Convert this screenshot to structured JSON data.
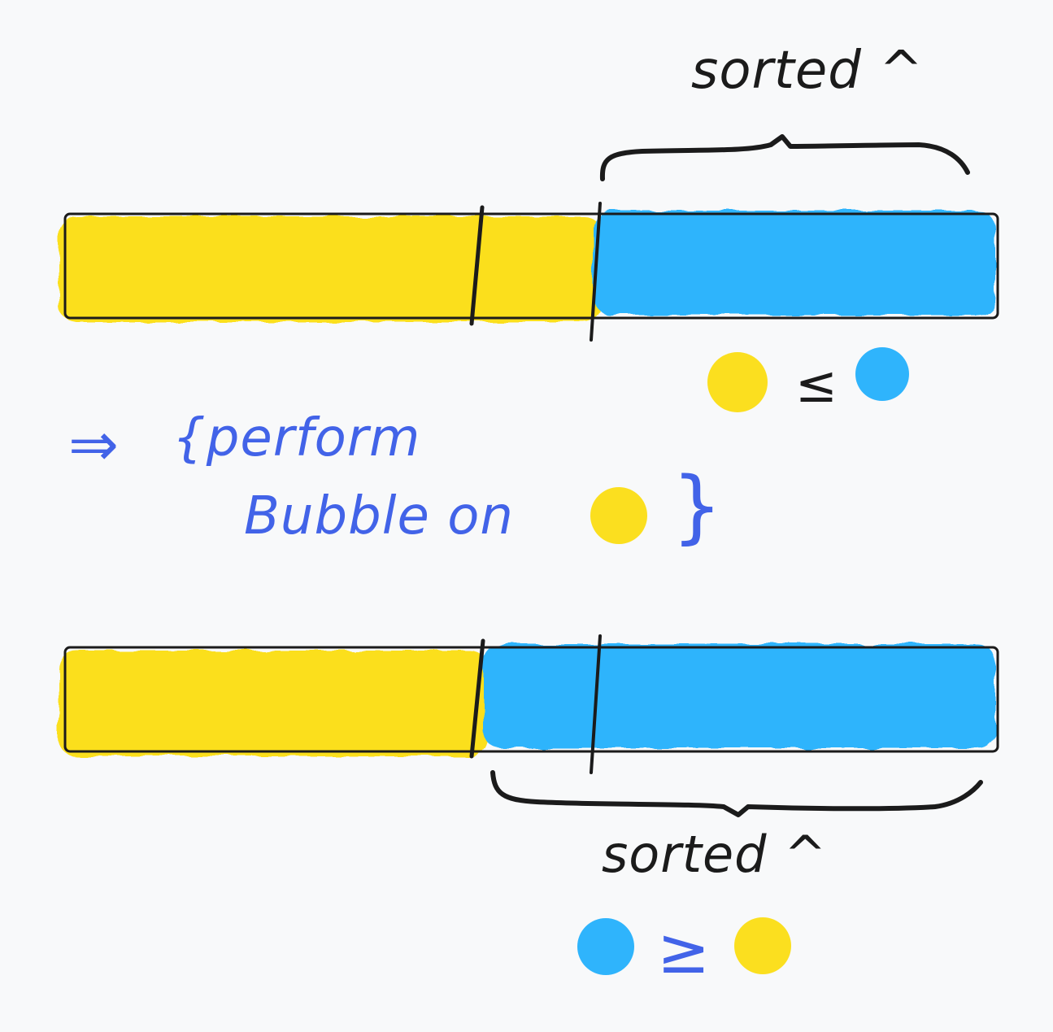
{
  "colors": {
    "background": "#f8f9fa",
    "unsorted_yellow": "#fbdf1f",
    "sorted_blue": "#2fb4fc",
    "ink_black": "#1b1b1b",
    "ink_blue": "#4263e8"
  },
  "top": {
    "label": "sorted ^",
    "relation": "≤"
  },
  "middle": {
    "implies": "⇒",
    "line1": "{perform",
    "line2": "Bubble on",
    "close_brace": "}"
  },
  "bottom": {
    "label": "sorted ^",
    "relation": "≥"
  }
}
